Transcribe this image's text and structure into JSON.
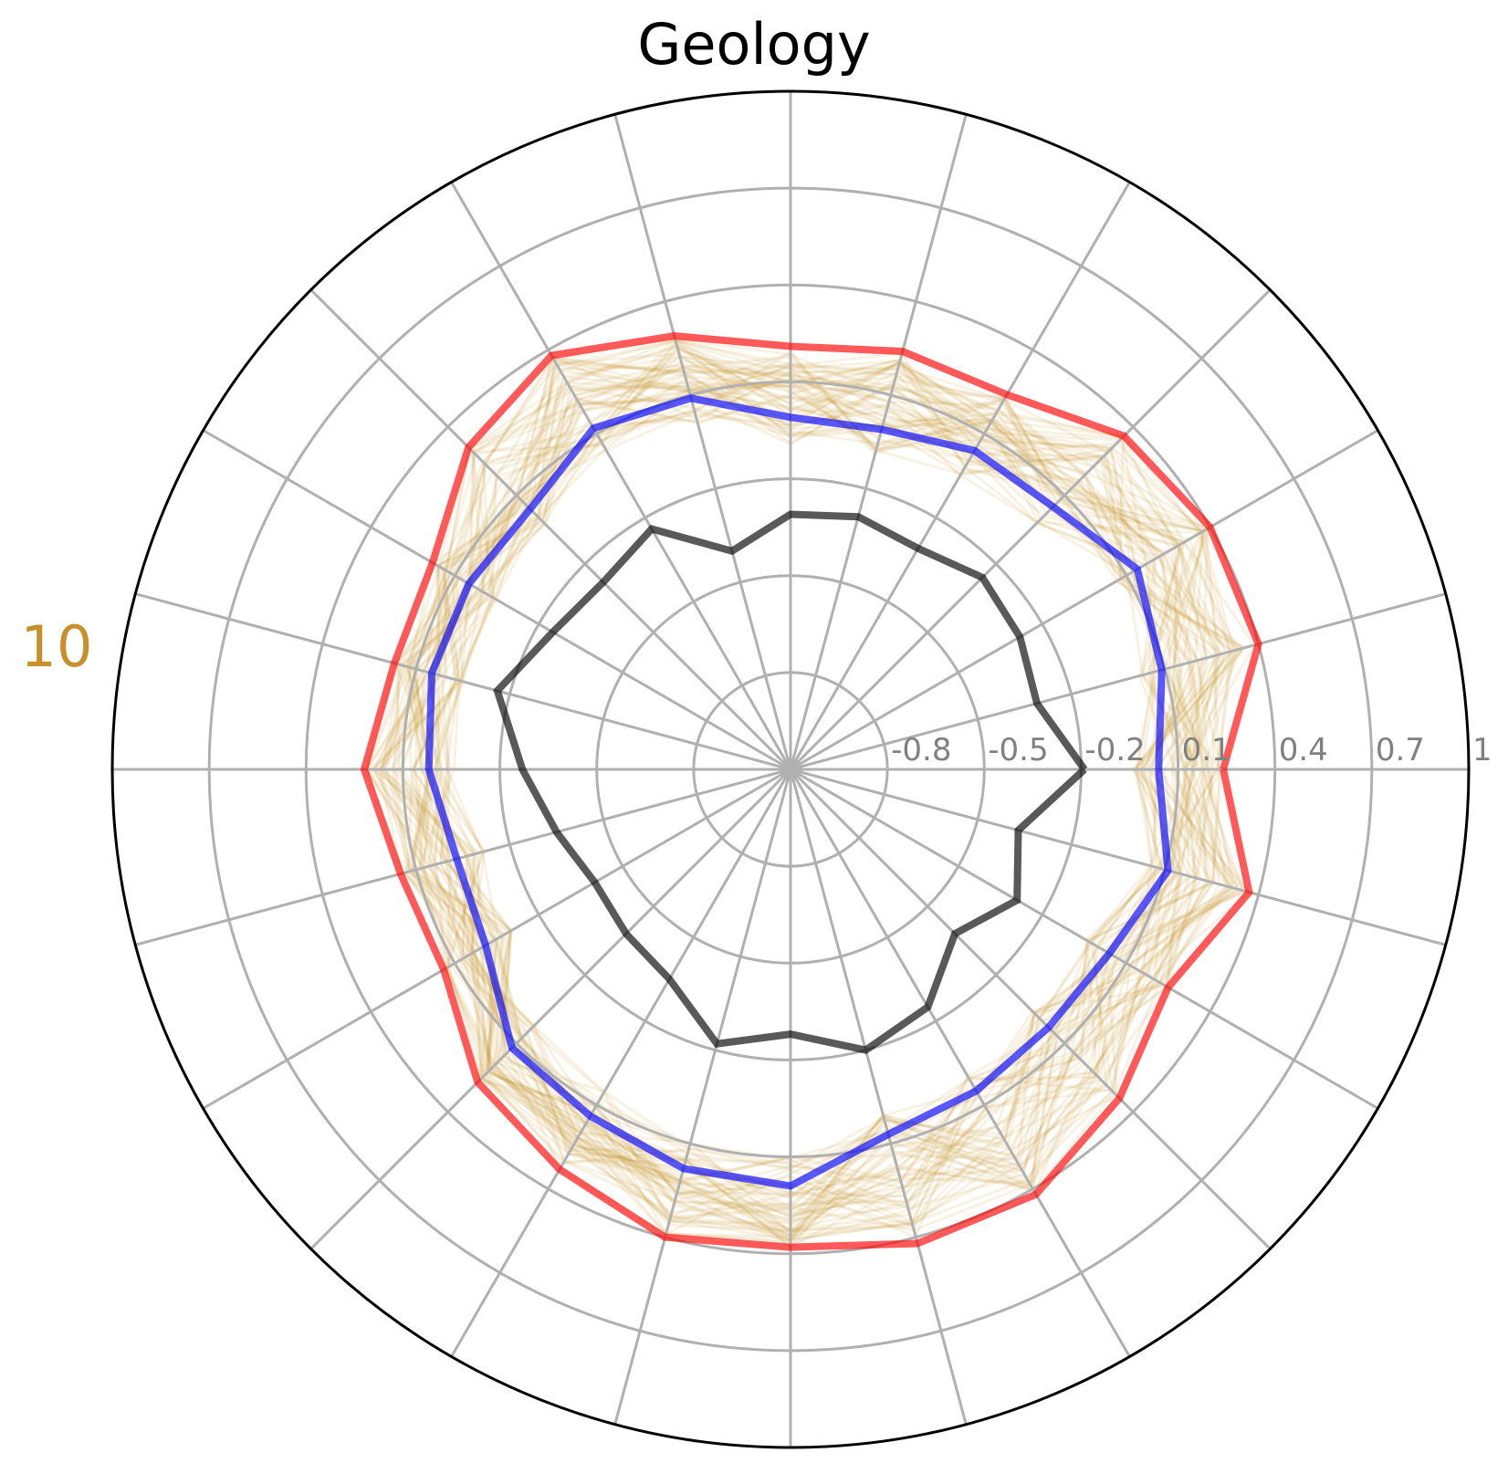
{
  "chart_data": {
    "type": "radar",
    "title": "Geology",
    "side_label": "10",
    "side_label_color": "#c8902a",
    "r_range": [
      -1.1,
      1.0
    ],
    "r_ticks": [
      -0.8,
      -0.5,
      -0.2,
      0.1,
      0.4,
      0.7,
      1
    ],
    "r_tick_labels": [
      "-0.8",
      "-0.5",
      "-0.2",
      "0.1",
      "0.4",
      "0.7",
      "1"
    ],
    "n_axes": 24,
    "grid": true,
    "series": [
      {
        "color": "#ff0000",
        "values": [
          0.24,
          0.4,
          0.4,
          0.36,
          0.24,
          0.24,
          0.21,
          0.29,
          0.38,
          0.31,
          0.18,
          0.17,
          0.22,
          0.15,
          0.14,
          0.27,
          0.33,
          0.4,
          0.38,
          0.42,
          0.42,
          0.34,
          0.25,
          0.37
        ]
      },
      {
        "color": "#0000ff",
        "values": [
          0.04,
          0.09,
          0.14,
          0.05,
          0.04,
          -0.01,
          -0.01,
          0.09,
          0.12,
          0.04,
          0.05,
          0.05,
          0.02,
          -0.03,
          -0.01,
          0.12,
          0.14,
          0.18,
          0.19,
          0.07,
          0.05,
          0.03,
          0.04,
          0.11
        ]
      },
      {
        "color": "#000000",
        "values": [
          -0.19,
          -0.31,
          -0.28,
          -0.26,
          -0.31,
          -0.29,
          -0.31,
          -0.4,
          -0.24,
          -0.28,
          -0.25,
          -0.16,
          -0.27,
          -0.35,
          -0.4,
          -0.38,
          -0.35,
          -0.22,
          -0.28,
          -0.2,
          -0.25,
          -0.38,
          -0.29,
          -0.37
        ]
      }
    ],
    "band": {
      "color": "#c8902a",
      "count": 60
    }
  }
}
